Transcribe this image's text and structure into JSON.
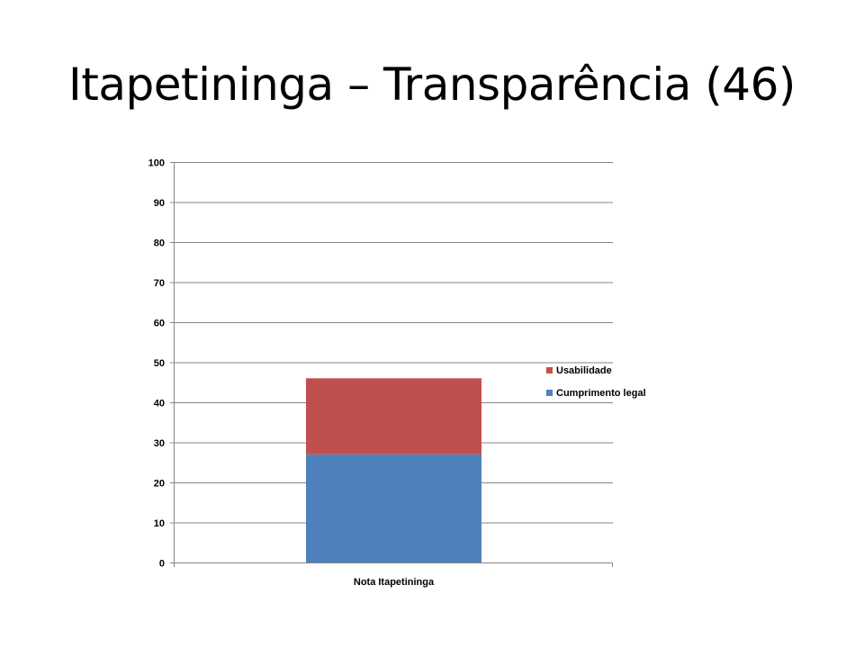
{
  "title": "Itapetininga – Transparência (46)",
  "colors": {
    "background": "#ffffff",
    "grid": "#868686",
    "axis": "#868686"
  },
  "chart_data": {
    "type": "bar",
    "stacked": true,
    "categories": [
      "Nota Itapetininga"
    ],
    "series": [
      {
        "name": "Cumprimento legal",
        "values": [
          27
        ],
        "color": "#4f81bd"
      },
      {
        "name": "Usabilidade",
        "values": [
          19
        ],
        "color": "#c0504d"
      }
    ],
    "ylim": [
      0,
      100
    ],
    "yticks": [
      0,
      10,
      20,
      30,
      40,
      50,
      60,
      70,
      80,
      90,
      100
    ],
    "grid": true,
    "legend": {
      "placement": "right",
      "order": [
        "Usabilidade",
        "Cumprimento legal"
      ]
    },
    "xlabel": "",
    "ylabel": ""
  }
}
